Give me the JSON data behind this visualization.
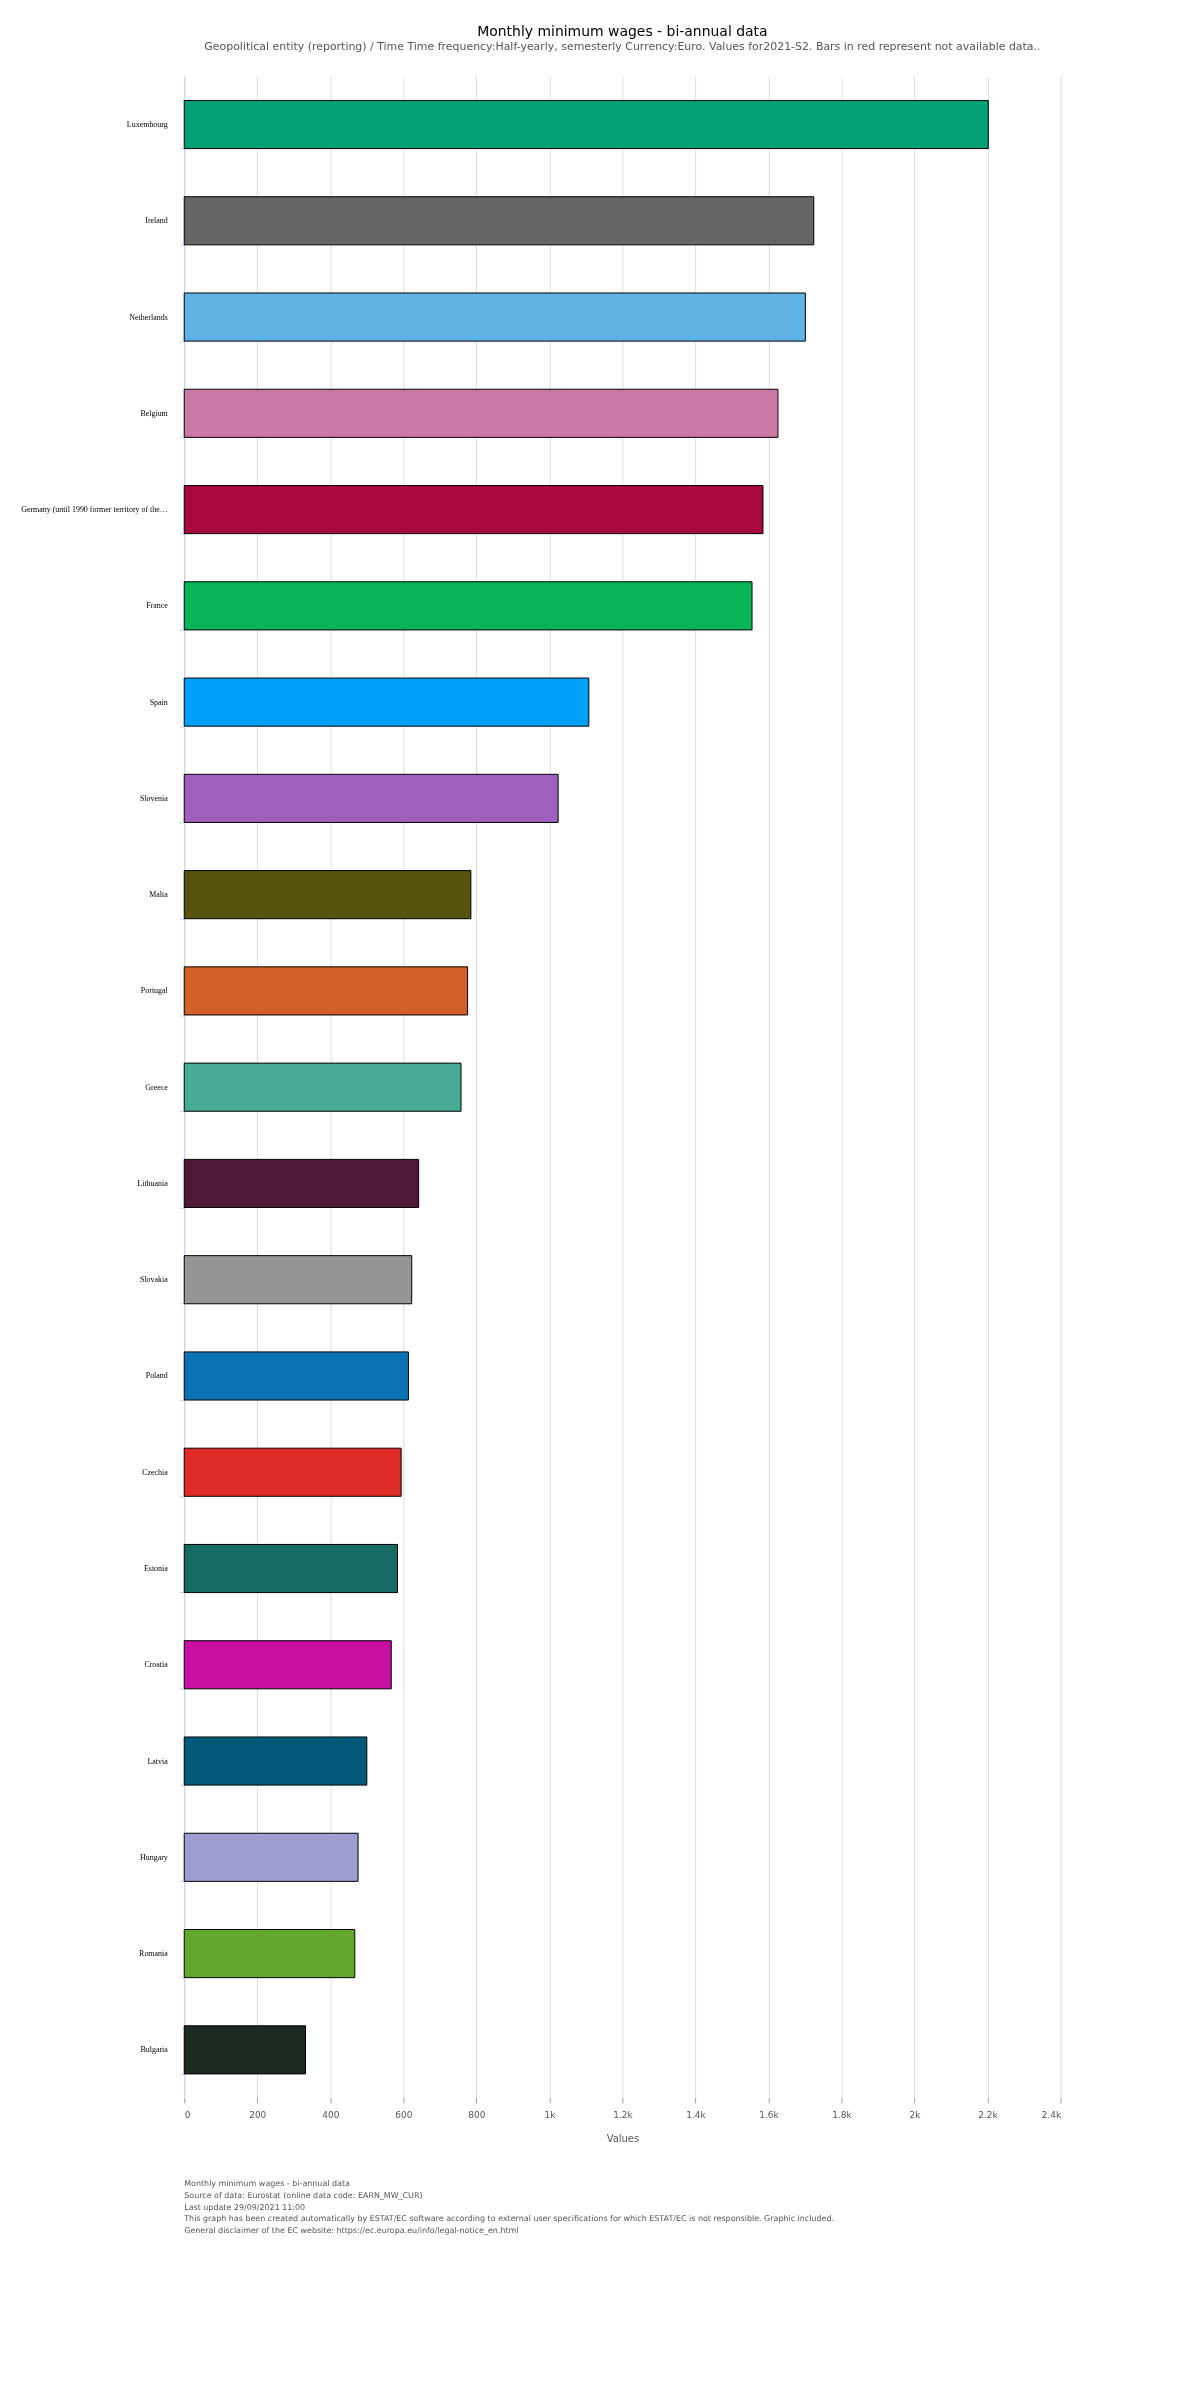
{
  "chart_data": {
    "type": "bar",
    "orientation": "horizontal",
    "title": "Monthly minimum wages - bi-annual data",
    "subtitle": "Geopolitical entity (reporting) / Time  Time frequency:Half-yearly, semesterly  Currency:Euro. Values for2021-S2. Bars in red represent not available data..",
    "xlabel": "Values",
    "categories": [
      "Luxembourg",
      "Ireland",
      "Netherlands",
      "Belgium",
      "Germany (until 1990 former territory of the…",
      "France",
      "Spain",
      "Slovenia",
      "Malta",
      "Portugal",
      "Greece",
      "Lithuania",
      "Slovakia",
      "Poland",
      "Czechia",
      "Estonia",
      "Croatia",
      "Latvia",
      "Hungary",
      "Romania",
      "Bulgaria"
    ],
    "values": [
      2202,
      1724,
      1701,
      1626,
      1585,
      1555,
      1108,
      1024,
      785,
      776,
      758,
      642,
      623,
      614,
      594,
      584,
      567,
      500,
      476,
      467,
      332
    ],
    "colors": [
      "#069e75",
      "#666666",
      "#5eb3e4",
      "#cc79a7",
      "#a8093c",
      "#0ab55a",
      "#00a0f9",
      "#9e5fbd",
      "#55530d",
      "#d36027",
      "#48ab95",
      "#4d1937",
      "#959595",
      "#0b72b3",
      "#e02c27",
      "#156a63",
      "#c70fa0",
      "#025a78",
      "#9d9dd1",
      "#63a82d",
      "#1b2b22"
    ],
    "xlim": [
      0,
      2400
    ],
    "xticks": [
      0,
      200,
      400,
      600,
      800,
      {
        "value": 1000,
        "label": "1k"
      },
      {
        "value": 1200,
        "label": "1.2k"
      },
      {
        "value": 1400,
        "label": "1.4k"
      },
      {
        "value": 1600,
        "label": "1.6k"
      },
      {
        "value": 1800,
        "label": "1.8k"
      },
      {
        "value": 2000,
        "label": "2k"
      },
      {
        "value": 2200,
        "label": "2.2k"
      },
      {
        "value": 2400,
        "label": "2.4k"
      }
    ],
    "grid": "x",
    "legend": false,
    "annotations": [
      "Monthly minimum wages - bi-annual data",
      "Source of data: Eurostat (online data code: EARN_MW_CUR)",
      "Last update 29/09/2021 11:00",
      "This graph has been created automatically by ESTAT/EC software according to external user specifications for which ESTAT/EC is not responsible. Graphic included.",
      "General disclaimer of the EC website: https://ec.europa.eu/info/legal-notice_en.html"
    ]
  }
}
